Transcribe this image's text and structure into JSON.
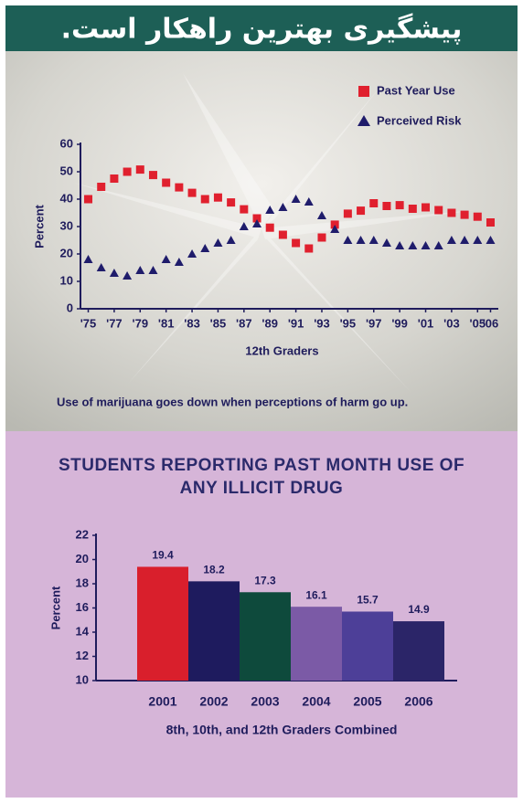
{
  "header": {
    "title": "پیشگیری بهترین راهکار است."
  },
  "chart_data": [
    {
      "type": "scatter",
      "x": [
        1975,
        1976,
        1977,
        1978,
        1979,
        1980,
        1981,
        1982,
        1983,
        1984,
        1985,
        1986,
        1987,
        1988,
        1989,
        1990,
        1991,
        1992,
        1993,
        1994,
        1995,
        1996,
        1997,
        1998,
        1999,
        2000,
        2001,
        2002,
        2003,
        2004,
        2005,
        2006
      ],
      "series": [
        {
          "name": "Past Year Use",
          "color": "#e0202e",
          "marker": "square",
          "values": [
            40,
            44.5,
            47.5,
            50,
            50.8,
            48.8,
            46,
            44.3,
            42.3,
            40,
            40.6,
            38.8,
            36.3,
            33,
            29.6,
            27,
            24,
            22,
            26,
            30.7,
            34.7,
            35.8,
            38.5,
            37.5,
            37.8,
            36.5,
            37,
            36,
            35,
            34.3,
            33.6,
            31.5
          ]
        },
        {
          "name": "Perceived Risk",
          "color": "#1f1c6b",
          "marker": "triangle",
          "values": [
            18,
            15,
            13,
            12,
            14,
            14,
            18,
            17,
            20,
            22,
            24,
            25,
            30,
            31,
            36,
            37,
            40,
            39,
            34,
            29,
            25,
            25,
            25,
            24,
            23,
            23,
            23,
            23,
            25,
            25,
            25,
            25
          ]
        }
      ],
      "xlim": [
        1974.4,
        2006.6
      ],
      "xticks": [
        {
          "value": 1975,
          "label": "'75"
        },
        {
          "value": 1977,
          "label": "'77"
        },
        {
          "value": 1979,
          "label": "'79"
        },
        {
          "value": 1981,
          "label": "'81"
        },
        {
          "value": 1983,
          "label": "'83"
        },
        {
          "value": 1985,
          "label": "'85"
        },
        {
          "value": 1987,
          "label": "'87"
        },
        {
          "value": 1989,
          "label": "'89"
        },
        {
          "value": 1991,
          "label": "'91"
        },
        {
          "value": 1993,
          "label": "'93"
        },
        {
          "value": 1995,
          "label": "'95"
        },
        {
          "value": 1997,
          "label": "'97"
        },
        {
          "value": 1999,
          "label": "'99"
        },
        {
          "value": 2001,
          "label": "'01"
        },
        {
          "value": 2003,
          "label": "'03"
        },
        {
          "value": 2005,
          "label": "'05"
        },
        {
          "value": 2006,
          "label": "'06"
        }
      ],
      "ylim": [
        0,
        60
      ],
      "yticks": [
        0,
        10,
        20,
        30,
        40,
        50,
        60
      ],
      "ylabel": "Percent",
      "xlabel": "12th Graders",
      "annotation": "Use of marijuana goes down when perceptions of harm go up.",
      "legend": "upper right"
    },
    {
      "type": "bar",
      "title": "STUDENTS REPORTING PAST MONTH USE OF ANY ILLICIT DRUG",
      "categories": [
        "2001",
        "2002",
        "2003",
        "2004",
        "2005",
        "2006"
      ],
      "values": [
        19.4,
        18.2,
        17.3,
        16.1,
        15.7,
        14.9
      ],
      "colors": [
        "#d91f2c",
        "#1e1b5e",
        "#0e4a3c",
        "#7b5aa6",
        "#4d3f98",
        "#2b2568"
      ],
      "ylim": [
        10,
        22
      ],
      "yticks": [
        10,
        12,
        14,
        16,
        18,
        20,
        22
      ],
      "ylabel": "Percent",
      "xlabel": "8th, 10th, and 12th Graders Combined"
    }
  ]
}
